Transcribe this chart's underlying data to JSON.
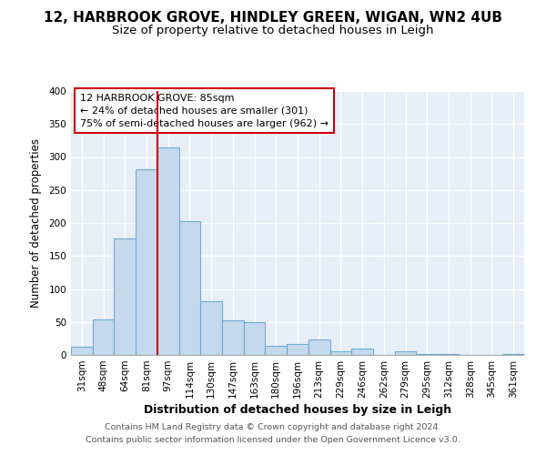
{
  "title": "12, HARBROOK GROVE, HINDLEY GREEN, WIGAN, WN2 4UB",
  "subtitle": "Size of property relative to detached houses in Leigh",
  "xlabel": "Distribution of detached houses by size in Leigh",
  "ylabel": "Number of detached properties",
  "categories": [
    "31sqm",
    "48sqm",
    "64sqm",
    "81sqm",
    "97sqm",
    "114sqm",
    "130sqm",
    "147sqm",
    "163sqm",
    "180sqm",
    "196sqm",
    "213sqm",
    "229sqm",
    "246sqm",
    "262sqm",
    "279sqm",
    "295sqm",
    "312sqm",
    "328sqm",
    "345sqm",
    "361sqm"
  ],
  "values": [
    12,
    54,
    177,
    281,
    315,
    203,
    81,
    52,
    50,
    14,
    16,
    24,
    6,
    10,
    0,
    6,
    2,
    1,
    0,
    0,
    2
  ],
  "bar_color": "#c5d8ed",
  "bar_edge_color": "#6aafd6",
  "vline_x_index": 3.5,
  "vline_color": "#cc0000",
  "annotation_title": "12 HARBROOK GROVE: 85sqm",
  "annotation_line1": "← 24% of detached houses are smaller (301)",
  "annotation_line2": "75% of semi-detached houses are larger (962) →",
  "annotation_box_edge": "#cc0000",
  "ylim": [
    0,
    400
  ],
  "yticks": [
    0,
    50,
    100,
    150,
    200,
    250,
    300,
    350,
    400
  ],
  "background_color": "#e8eef5",
  "footer_line1": "Contains HM Land Registry data © Crown copyright and database right 2024.",
  "footer_line2": "Contains public sector information licensed under the Open Government Licence v3.0.",
  "title_fontsize": 11,
  "subtitle_fontsize": 9.5,
  "xlabel_fontsize": 9,
  "ylabel_fontsize": 8.5,
  "tick_fontsize": 7.5,
  "footer_fontsize": 6.8
}
